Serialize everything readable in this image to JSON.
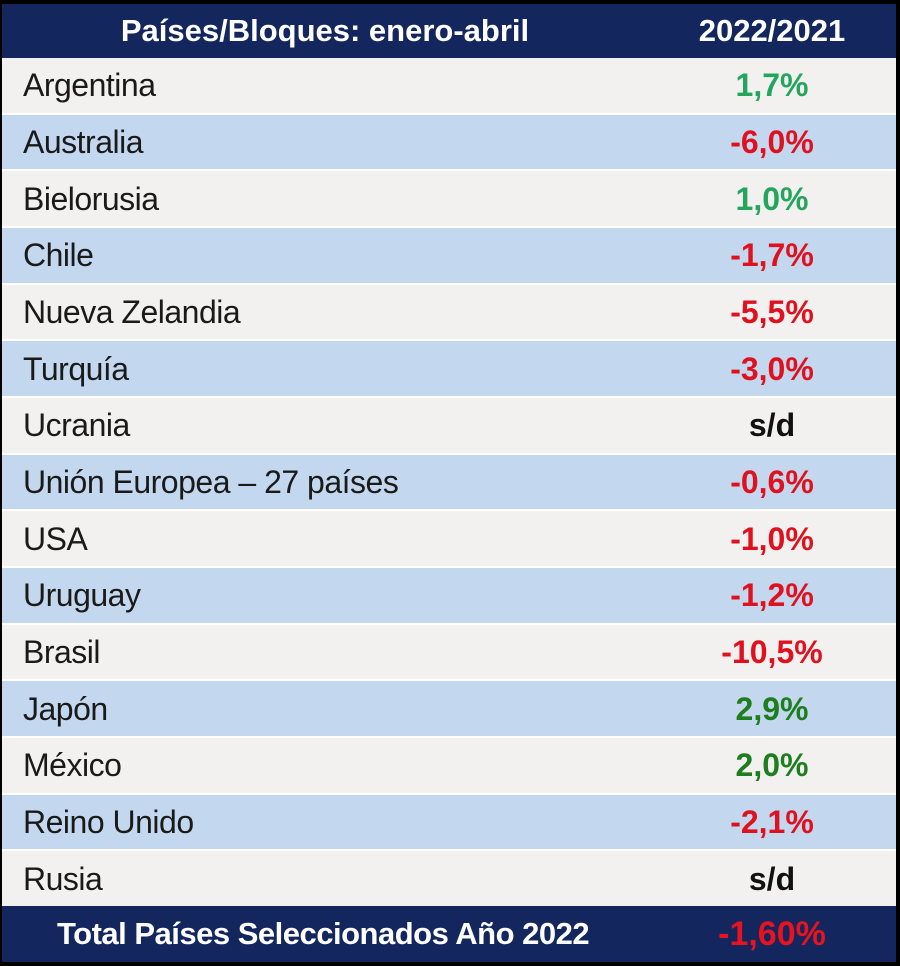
{
  "header": {
    "title": "Países/Bloques: enero-abril",
    "value_column": "2022/2021"
  },
  "rows": [
    {
      "name": "Argentina",
      "value": "1,7%",
      "vclass": "cell val v-green"
    },
    {
      "name": "Australia",
      "value": "-6,0%",
      "vclass": "cell val v-red"
    },
    {
      "name": "Bielorusia",
      "value": "1,0%",
      "vclass": "cell val v-green"
    },
    {
      "name": "Chile",
      "value": "-1,7%",
      "vclass": "cell val v-red"
    },
    {
      "name": "Nueva Zelandia",
      "value": "-5,5%",
      "vclass": "cell val v-red"
    },
    {
      "name": "Turquía",
      "value": "-3,0%",
      "vclass": "cell val v-red"
    },
    {
      "name": "Ucrania",
      "value": "s/d",
      "vclass": "cell val v-dark"
    },
    {
      "name": "Unión Europea – 27 países",
      "value": "-0,6%",
      "vclass": "cell val v-red"
    },
    {
      "name": "USA",
      "value": "-1,0%",
      "vclass": "cell val v-red"
    },
    {
      "name": "Uruguay",
      "value": "-1,2%",
      "vclass": "cell val v-red"
    },
    {
      "name": "Brasil",
      "value": "-10,5%",
      "vclass": "cell val v-red"
    },
    {
      "name": "Japón",
      "value": "2,9%",
      "vclass": "cell val v-dgreen"
    },
    {
      "name": "México",
      "value": "2,0%",
      "vclass": "cell val v-dgreen"
    },
    {
      "name": "Reino Unido",
      "value": "-2,1%",
      "vclass": "cell val v-red"
    },
    {
      "name": "Rusia",
      "value": "s/d",
      "vclass": "cell val v-dark"
    }
  ],
  "footer": {
    "label": "Total Países Seleccionados Año 2022",
    "value": "-1,60%"
  },
  "colors": {
    "navy_header": "#14265E",
    "row_gray": "#F2F1EF",
    "row_blue": "#C3D8EF",
    "negative_red": "#E0111E",
    "positive_green_bright": "#24A55E",
    "positive_green_dark": "#1E7D1E",
    "text_dark": "#1A1A1A",
    "text_white": "#FFFFFF"
  },
  "chart_data": {
    "type": "table",
    "title": "Países/Bloques: enero-abril",
    "value_column_label": "2022/2021",
    "categories": [
      "Argentina",
      "Australia",
      "Bielorusia",
      "Chile",
      "Nueva Zelandia",
      "Turquía",
      "Ucrania",
      "Unión Europea – 27 países",
      "USA",
      "Uruguay",
      "Brasil",
      "Japón",
      "México",
      "Reino Unido",
      "Rusia"
    ],
    "values_pct": [
      1.7,
      -6.0,
      1.0,
      -1.7,
      -5.5,
      -3.0,
      null,
      -0.6,
      -1.0,
      -1.2,
      -10.5,
      2.9,
      2.0,
      -2.1,
      null
    ],
    "no_data_label": "s/d",
    "total_label": "Total Países Seleccionados Año 2022",
    "total_value_pct": -1.6
  }
}
